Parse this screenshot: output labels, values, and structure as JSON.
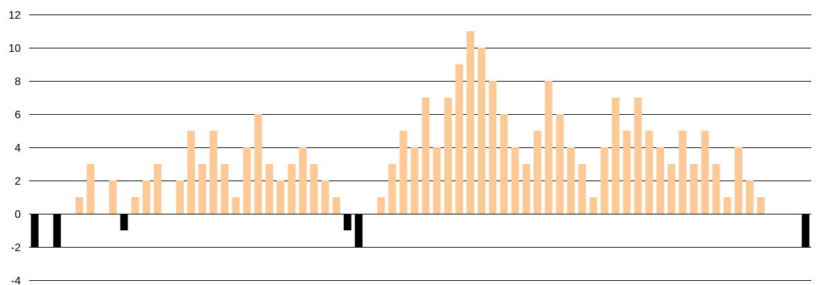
{
  "chart_data": {
    "type": "bar",
    "title": "",
    "xlabel": "",
    "ylabel": "",
    "ylim": [
      -4,
      12
    ],
    "yticks": [
      12,
      10,
      8,
      6,
      4,
      2,
      0,
      -2,
      -4
    ],
    "grid": true,
    "legend": "none",
    "colors": {
      "positive": "#FFC996",
      "negative": "#000000",
      "grid": "#000000"
    },
    "values": [
      -2,
      0,
      -2,
      0,
      1,
      3,
      0,
      2,
      -1,
      1,
      2,
      3,
      0,
      2,
      5,
      3,
      5,
      3,
      1,
      4,
      6,
      3,
      2,
      3,
      4,
      3,
      2,
      1,
      -1,
      -2,
      0,
      1,
      3,
      5,
      4,
      7,
      4,
      7,
      9,
      11,
      10,
      8,
      6,
      4,
      3,
      5,
      8,
      6,
      4,
      3,
      1,
      4,
      7,
      5,
      7,
      5,
      4,
      3,
      5,
      3,
      5,
      3,
      1,
      4,
      2,
      1,
      0,
      0,
      0,
      -2
    ]
  }
}
